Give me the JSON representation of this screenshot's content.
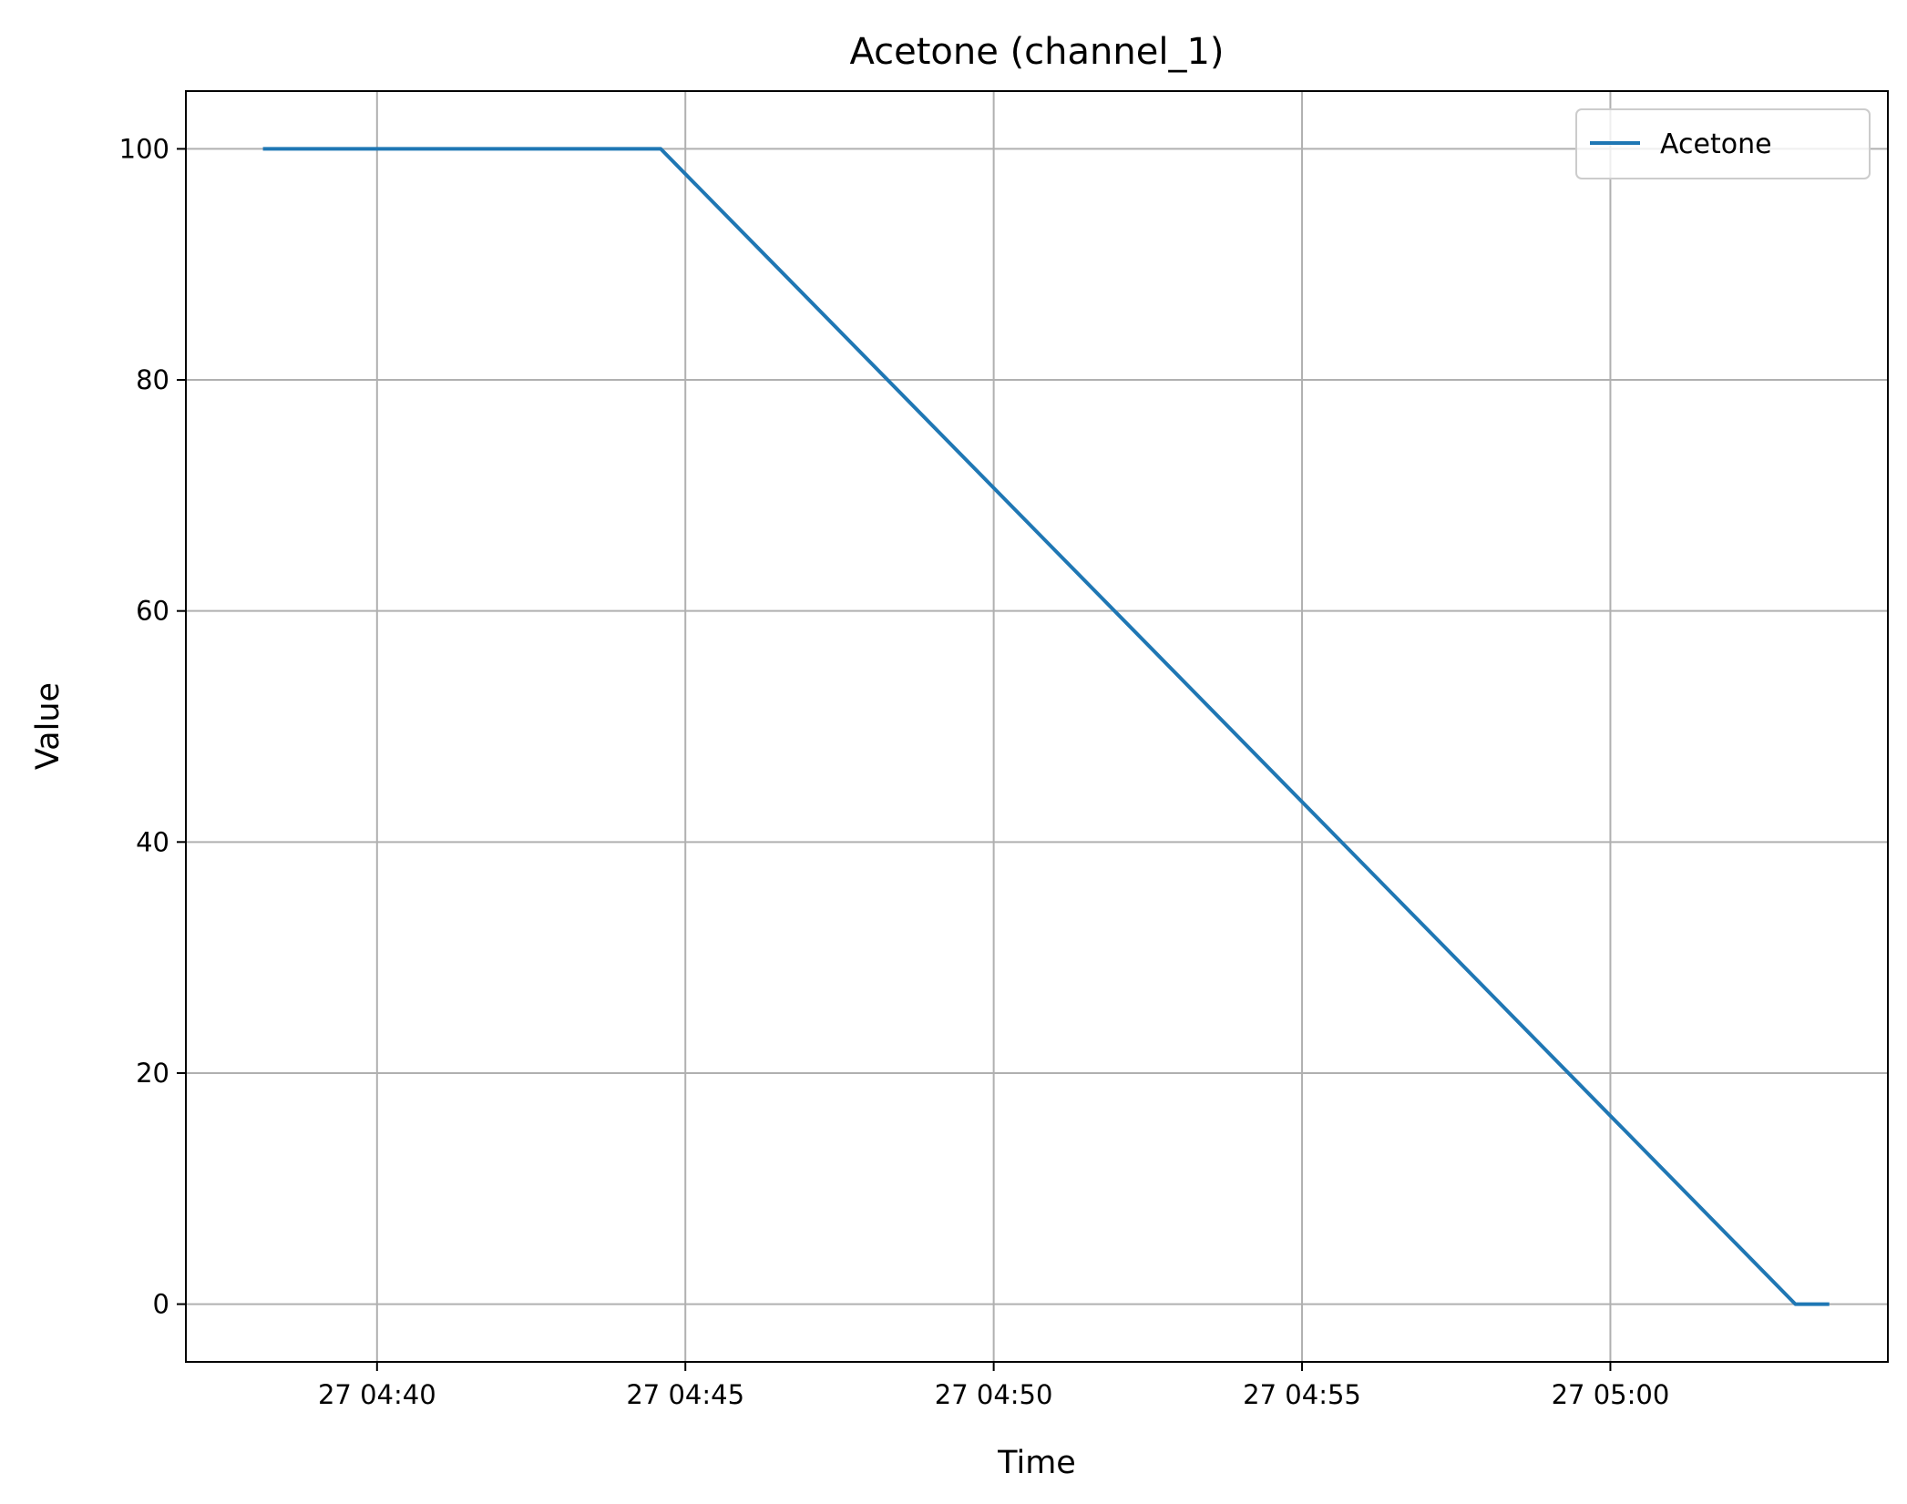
{
  "chart_data": {
    "type": "line",
    "title": "Acetone (channel_1)",
    "xlabel": "Time",
    "ylabel": "Value",
    "x_ticks": [
      "27 04:40",
      "27 04:45",
      "27 04:50",
      "27 04:55",
      "27 05:00"
    ],
    "x_tick_minutes": [
      40,
      45,
      50,
      55,
      60
    ],
    "xlim_minutes": [
      36.9,
      64.5
    ],
    "ylim": [
      -5,
      105
    ],
    "y_ticks": [
      0,
      20,
      40,
      60,
      80,
      100
    ],
    "grid": true,
    "legend": {
      "position": "top-right"
    },
    "x_unit_note": "x values are minutes after 27 04:00",
    "series": [
      {
        "name": "Acetone",
        "color": "#1f77b4",
        "x": [
          38.15,
          44.6,
          63.0,
          63.55
        ],
        "y": [
          100,
          100,
          0,
          0
        ]
      }
    ]
  }
}
